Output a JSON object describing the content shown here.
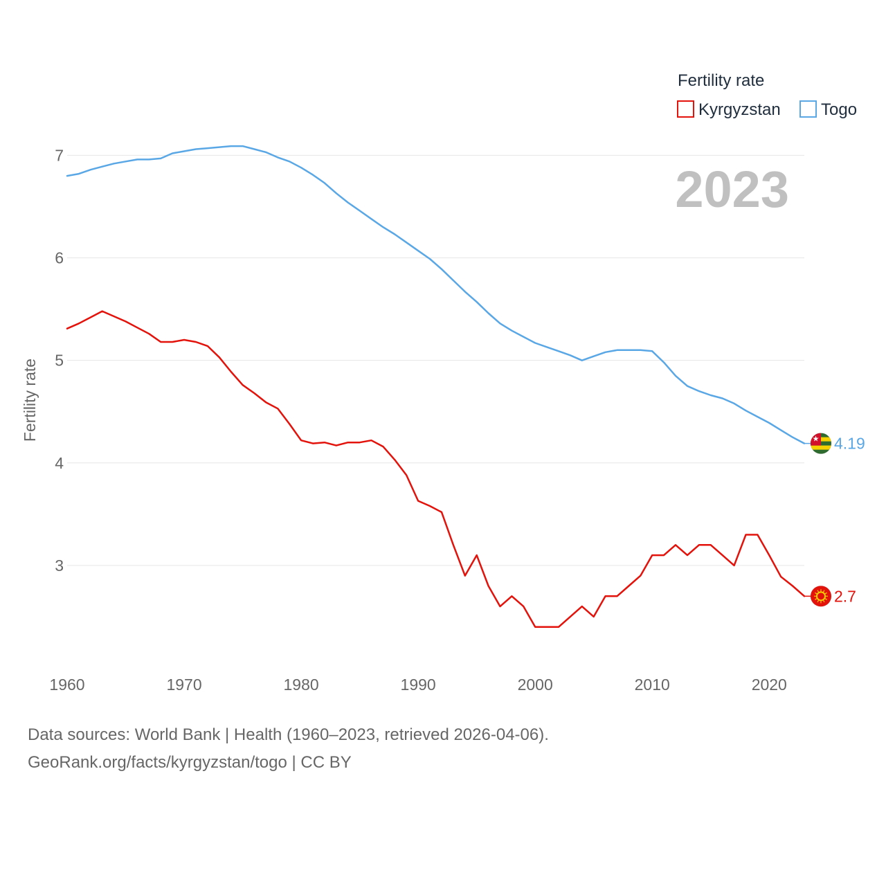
{
  "chart_data": {
    "type": "line",
    "title": "",
    "year_stamp": "2023",
    "xlabel": "",
    "ylabel": "Fertility rate",
    "xlim": [
      1960,
      2023
    ],
    "ylim": [
      2.0,
      7.3
    ],
    "x_ticks": [
      1960,
      1970,
      1980,
      1990,
      2000,
      2010,
      2020
    ],
    "y_ticks": [
      3,
      4,
      5,
      6,
      7
    ],
    "legend": {
      "title": "Fertility rate",
      "position": "top-right"
    },
    "grid": true,
    "x": [
      1960,
      1961,
      1962,
      1963,
      1964,
      1965,
      1966,
      1967,
      1968,
      1969,
      1970,
      1971,
      1972,
      1973,
      1974,
      1975,
      1976,
      1977,
      1978,
      1979,
      1980,
      1981,
      1982,
      1983,
      1984,
      1985,
      1986,
      1987,
      1988,
      1989,
      1990,
      1991,
      1992,
      1993,
      1994,
      1995,
      1996,
      1997,
      1998,
      1999,
      2000,
      2001,
      2002,
      2003,
      2004,
      2005,
      2006,
      2007,
      2008,
      2009,
      2010,
      2011,
      2012,
      2013,
      2014,
      2015,
      2016,
      2017,
      2018,
      2019,
      2020,
      2021,
      2022,
      2023
    ],
    "series": [
      {
        "name": "Kyrgyzstan",
        "color": "#e3120b",
        "end_label": "2.7",
        "flag_icon": "kyrgyzstan-flag-icon",
        "values": [
          5.31,
          5.36,
          5.42,
          5.48,
          5.43,
          5.38,
          5.32,
          5.26,
          5.18,
          5.18,
          5.2,
          5.18,
          5.14,
          5.03,
          4.89,
          4.76,
          4.68,
          4.59,
          4.53,
          4.38,
          4.22,
          4.19,
          4.2,
          4.17,
          4.2,
          4.2,
          4.22,
          4.16,
          4.03,
          3.88,
          3.63,
          3.58,
          3.52,
          3.2,
          2.9,
          3.1,
          2.8,
          2.6,
          2.7,
          2.6,
          2.4,
          2.4,
          2.4,
          2.5,
          2.6,
          2.5,
          2.7,
          2.7,
          2.8,
          2.9,
          3.1,
          3.1,
          3.2,
          3.1,
          3.2,
          3.2,
          3.1,
          3.0,
          3.3,
          3.3,
          3.1,
          2.89,
          2.8,
          2.7
        ]
      },
      {
        "name": "Togo",
        "color": "#5aa7e6",
        "end_label": "4.19",
        "flag_icon": "togo-flag-icon",
        "values": [
          6.8,
          6.82,
          6.86,
          6.89,
          6.92,
          6.94,
          6.96,
          6.96,
          6.97,
          7.02,
          7.04,
          7.06,
          7.07,
          7.08,
          7.09,
          7.09,
          7.06,
          7.03,
          6.98,
          6.94,
          6.88,
          6.81,
          6.73,
          6.63,
          6.54,
          6.46,
          6.38,
          6.3,
          6.23,
          6.15,
          6.07,
          5.99,
          5.89,
          5.78,
          5.67,
          5.57,
          5.46,
          5.36,
          5.29,
          5.23,
          5.17,
          5.13,
          5.09,
          5.05,
          5.0,
          5.04,
          5.08,
          5.1,
          5.1,
          5.1,
          5.09,
          4.98,
          4.85,
          4.75,
          4.7,
          4.66,
          4.63,
          4.58,
          4.51,
          4.45,
          4.39,
          4.32,
          4.25,
          4.19
        ]
      }
    ]
  },
  "footer": {
    "line1": "Data sources: World Bank | Health (1960–2023, retrieved 2026-04-06).",
    "line2": "GeoRank.org/facts/kyrgyzstan/togo | CC BY"
  }
}
